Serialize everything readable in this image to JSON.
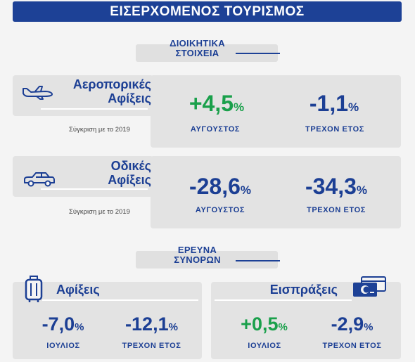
{
  "banner": {
    "title": "ΕΙΣΕΡΧΟΜΕΝΟΣ ΤΟΥΡΙΣΜΟΣ"
  },
  "section_admin": {
    "line1": "ΔΙΟΙΚΗΤΙΚΑ",
    "line2": "ΣΤΟΙΧΕΙΑ"
  },
  "air": {
    "title_line1": "Αεροπορικές",
    "title_line2": "Αφίξεις",
    "compare": "Σύγκριση με το 2019",
    "icon": "airplane-icon",
    "stats": [
      {
        "value": "+4,5",
        "unit": "%",
        "label": "ΑΥΓΟΥΣΤΟΣ",
        "color": "#1aa04b"
      },
      {
        "value": "-1,1",
        "unit": "%",
        "label": "ΤΡΕΧΟΝ ΕΤΟΣ",
        "color": "#1c3f94"
      }
    ]
  },
  "road": {
    "title_line1": "Οδικές",
    "title_line2": "Αφίξεις",
    "compare": "Σύγκριση με το 2019",
    "icon": "car-icon",
    "stats": [
      {
        "value": "-28,6",
        "unit": "%",
        "label": "ΑΥΓΟΥΣΤΟΣ",
        "color": "#1c3f94"
      },
      {
        "value": "-34,3",
        "unit": "%",
        "label": "ΤΡΕΧΟΝ ΕΤΟΣ",
        "color": "#1c3f94"
      }
    ]
  },
  "section_survey": {
    "line1": "ΕΡΕΥΝΑ",
    "line2": "ΣΥΝΟΡΩΝ"
  },
  "arrivals": {
    "title": "Αφίξεις",
    "icon": "suitcase-icon",
    "stats": [
      {
        "value": "-7,0",
        "unit": "%",
        "label": "ΙΟΥΛΙΟΣ",
        "color": "#1c3f94"
      },
      {
        "value": "-12,1",
        "unit": "%",
        "label": "ΤΡΕΧΟΝ ΕΤΟΣ",
        "color": "#1c3f94"
      }
    ]
  },
  "receipts": {
    "title": "Εισπράξεις",
    "icon": "credit-card-icon",
    "stats": [
      {
        "value": "+0,5",
        "unit": "%",
        "label": "ΙΟΥΛΙΟΣ",
        "color": "#1aa04b"
      },
      {
        "value": "-2,9",
        "unit": "%",
        "label": "ΤΡΕΧΟΝ ΕΤΟΣ",
        "color": "#1c3f94"
      }
    ]
  }
}
